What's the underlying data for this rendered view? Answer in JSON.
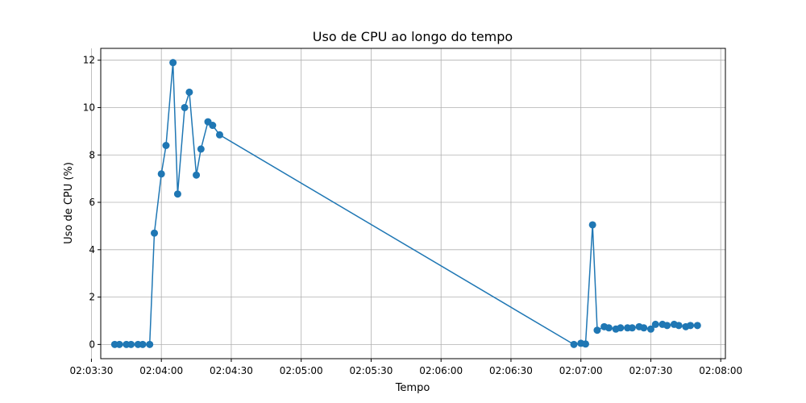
{
  "chart_data": {
    "type": "line",
    "title": "Uso de CPU ao longo do tempo",
    "xlabel": "Tempo",
    "ylabel": "Uso de CPU (%)",
    "x_tick_labels": [
      "02:03:30",
      "02:04:00",
      "02:04:30",
      "02:05:00",
      "02:05:30",
      "02:06:00",
      "02:06:30",
      "02:07:00",
      "02:07:30",
      "02:08:00"
    ],
    "y_tick_labels": [
      "0",
      "2",
      "4",
      "6",
      "8",
      "10",
      "12"
    ],
    "xlim": [
      "02:03:34",
      "02:08:02"
    ],
    "ylim": [
      -0.6,
      12.5
    ],
    "grid": true,
    "color": "#1f77b4",
    "series": [
      {
        "x": [
          "02:03:40",
          "02:03:42",
          "02:03:45",
          "02:03:47",
          "02:03:50",
          "02:03:52",
          "02:03:55",
          "02:03:57",
          "02:04:00",
          "02:04:02",
          "02:04:05",
          "02:04:07",
          "02:04:10",
          "02:04:12",
          "02:04:15",
          "02:04:17",
          "02:04:20",
          "02:04:22",
          "02:04:25",
          "02:06:57",
          "02:07:00",
          "02:07:02",
          "02:07:05",
          "02:07:07",
          "02:07:10",
          "02:07:12",
          "02:07:15",
          "02:07:17",
          "02:07:20",
          "02:07:22",
          "02:07:25",
          "02:07:27",
          "02:07:30",
          "02:07:32",
          "02:07:35",
          "02:07:37",
          "02:07:40",
          "02:07:42",
          "02:07:45",
          "02:07:47",
          "02:07:50"
        ],
        "y": [
          0,
          0,
          0,
          0,
          0,
          0,
          0,
          4.7,
          7.2,
          8.4,
          11.9,
          6.35,
          10.0,
          10.65,
          7.15,
          8.25,
          9.4,
          9.25,
          8.85,
          0,
          0.05,
          0.02,
          5.05,
          0.6,
          0.75,
          0.7,
          0.65,
          0.7,
          0.7,
          0.7,
          0.75,
          0.7,
          0.65,
          0.85,
          0.85,
          0.8,
          0.85,
          0.8,
          0.75,
          0.8,
          0.8
        ]
      }
    ]
  }
}
